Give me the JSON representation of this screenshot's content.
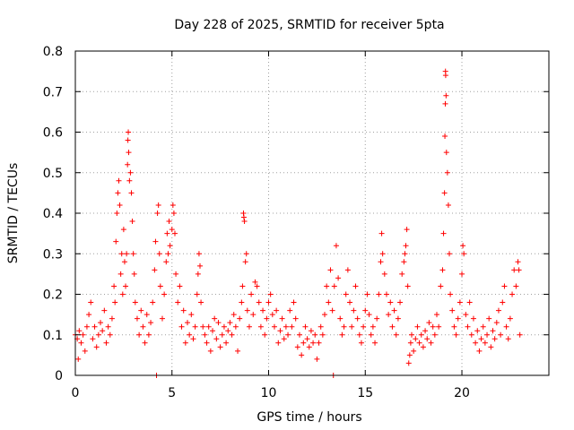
{
  "chart_data": {
    "type": "scatter",
    "title": "Day 228 of 2025, SRMTID for receiver 5pta",
    "xlabel": "GPS time / hours",
    "ylabel": "SRMTID / TECUs",
    "xlim": [
      0,
      24.5
    ],
    "ylim": [
      0,
      0.8
    ],
    "xticks": [
      0,
      5,
      10,
      15,
      20
    ],
    "xtick_labels": [
      "0",
      "5",
      "10",
      "15",
      "20"
    ],
    "yticks": [
      0,
      0.1,
      0.2,
      0.3,
      0.4,
      0.5,
      0.6,
      0.7,
      0.8
    ],
    "ytick_labels": [
      "0",
      "0.1",
      "0.2",
      "0.3",
      "0.4",
      "0.5",
      "0.6",
      "0.7",
      "0.8"
    ],
    "grid": true,
    "marker": "+",
    "color": "#ff0000",
    "series": [
      {
        "name": "SRMTID",
        "points": [
          [
            0.0,
            0.1
          ],
          [
            0.1,
            0.09
          ],
          [
            0.15,
            0.04
          ],
          [
            0.2,
            0.11
          ],
          [
            0.3,
            0.08
          ],
          [
            0.4,
            0.1
          ],
          [
            0.5,
            0.06
          ],
          [
            0.6,
            0.12
          ],
          [
            0.7,
            0.15
          ],
          [
            0.8,
            0.18
          ],
          [
            0.9,
            0.09
          ],
          [
            1.0,
            0.12
          ],
          [
            1.1,
            0.07
          ],
          [
            1.2,
            0.1
          ],
          [
            1.3,
            0.13
          ],
          [
            1.4,
            0.11
          ],
          [
            1.5,
            0.16
          ],
          [
            1.6,
            0.08
          ],
          [
            1.7,
            0.12
          ],
          [
            1.8,
            0.1
          ],
          [
            1.9,
            0.14
          ],
          [
            2.0,
            0.22
          ],
          [
            2.05,
            0.18
          ],
          [
            2.1,
            0.33
          ],
          [
            2.15,
            0.4
          ],
          [
            2.2,
            0.45
          ],
          [
            2.25,
            0.48
          ],
          [
            2.3,
            0.42
          ],
          [
            2.35,
            0.25
          ],
          [
            2.4,
            0.3
          ],
          [
            2.45,
            0.2
          ],
          [
            2.5,
            0.36
          ],
          [
            2.55,
            0.28
          ],
          [
            2.6,
            0.22
          ],
          [
            2.65,
            0.3
          ],
          [
            2.7,
            0.52
          ],
          [
            2.72,
            0.58
          ],
          [
            2.74,
            0.6
          ],
          [
            2.76,
            0.55
          ],
          [
            2.8,
            0.48
          ],
          [
            2.85,
            0.5
          ],
          [
            2.9,
            0.45
          ],
          [
            2.95,
            0.38
          ],
          [
            3.0,
            0.3
          ],
          [
            3.05,
            0.25
          ],
          [
            3.1,
            0.18
          ],
          [
            3.2,
            0.14
          ],
          [
            3.3,
            0.1
          ],
          [
            3.4,
            0.16
          ],
          [
            3.5,
            0.12
          ],
          [
            3.6,
            0.08
          ],
          [
            3.7,
            0.15
          ],
          [
            3.8,
            0.1
          ],
          [
            3.9,
            0.13
          ],
          [
            4.0,
            0.18
          ],
          [
            4.1,
            0.26
          ],
          [
            4.15,
            0.33
          ],
          [
            4.2,
            0.0
          ],
          [
            4.25,
            0.4
          ],
          [
            4.3,
            0.42
          ],
          [
            4.35,
            0.3
          ],
          [
            4.4,
            0.22
          ],
          [
            4.5,
            0.14
          ],
          [
            4.6,
            0.2
          ],
          [
            4.7,
            0.28
          ],
          [
            4.75,
            0.35
          ],
          [
            4.8,
            0.3
          ],
          [
            4.85,
            0.38
          ],
          [
            4.9,
            0.32
          ],
          [
            5.0,
            0.36
          ],
          [
            5.05,
            0.42
          ],
          [
            5.1,
            0.4
          ],
          [
            5.15,
            0.35
          ],
          [
            5.2,
            0.25
          ],
          [
            5.3,
            0.18
          ],
          [
            5.4,
            0.22
          ],
          [
            5.5,
            0.12
          ],
          [
            5.6,
            0.16
          ],
          [
            5.7,
            0.08
          ],
          [
            5.8,
            0.13
          ],
          [
            5.9,
            0.1
          ],
          [
            6.0,
            0.15
          ],
          [
            6.1,
            0.09
          ],
          [
            6.2,
            0.12
          ],
          [
            6.3,
            0.2
          ],
          [
            6.35,
            0.25
          ],
          [
            6.4,
            0.3
          ],
          [
            6.45,
            0.27
          ],
          [
            6.5,
            0.18
          ],
          [
            6.6,
            0.12
          ],
          [
            6.7,
            0.1
          ],
          [
            6.8,
            0.08
          ],
          [
            6.9,
            0.12
          ],
          [
            7.0,
            0.06
          ],
          [
            7.1,
            0.11
          ],
          [
            7.2,
            0.14
          ],
          [
            7.3,
            0.09
          ],
          [
            7.4,
            0.13
          ],
          [
            7.5,
            0.07
          ],
          [
            7.6,
            0.1
          ],
          [
            7.7,
            0.12
          ],
          [
            7.8,
            0.08
          ],
          [
            7.9,
            0.11
          ],
          [
            8.0,
            0.13
          ],
          [
            8.1,
            0.1
          ],
          [
            8.2,
            0.15
          ],
          [
            8.3,
            0.12
          ],
          [
            8.4,
            0.06
          ],
          [
            8.5,
            0.14
          ],
          [
            8.6,
            0.18
          ],
          [
            8.65,
            0.22
          ],
          [
            8.7,
            0.4
          ],
          [
            8.72,
            0.39
          ],
          [
            8.75,
            0.38
          ],
          [
            8.8,
            0.28
          ],
          [
            8.85,
            0.3
          ],
          [
            8.9,
            0.16
          ],
          [
            9.0,
            0.12
          ],
          [
            9.1,
            0.2
          ],
          [
            9.2,
            0.15
          ],
          [
            9.3,
            0.23
          ],
          [
            9.4,
            0.22
          ],
          [
            9.5,
            0.18
          ],
          [
            9.6,
            0.12
          ],
          [
            9.7,
            0.16
          ],
          [
            9.8,
            0.1
          ],
          [
            9.9,
            0.14
          ],
          [
            10.0,
            0.18
          ],
          [
            10.1,
            0.2
          ],
          [
            10.2,
            0.15
          ],
          [
            10.3,
            0.12
          ],
          [
            10.4,
            0.16
          ],
          [
            10.5,
            0.08
          ],
          [
            10.6,
            0.11
          ],
          [
            10.7,
            0.14
          ],
          [
            10.8,
            0.09
          ],
          [
            10.9,
            0.12
          ],
          [
            11.0,
            0.1
          ],
          [
            11.1,
            0.16
          ],
          [
            11.2,
            0.12
          ],
          [
            11.3,
            0.18
          ],
          [
            11.4,
            0.14
          ],
          [
            11.5,
            0.07
          ],
          [
            11.6,
            0.1
          ],
          [
            11.7,
            0.05
          ],
          [
            11.8,
            0.08
          ],
          [
            11.9,
            0.12
          ],
          [
            12.0,
            0.09
          ],
          [
            12.1,
            0.07
          ],
          [
            12.2,
            0.11
          ],
          [
            12.3,
            0.08
          ],
          [
            12.4,
            0.1
          ],
          [
            12.5,
            0.04
          ],
          [
            12.6,
            0.08
          ],
          [
            12.7,
            0.12
          ],
          [
            12.8,
            0.1
          ],
          [
            12.9,
            0.15
          ],
          [
            13.0,
            0.22
          ],
          [
            13.1,
            0.18
          ],
          [
            13.2,
            0.26
          ],
          [
            13.3,
            0.16
          ],
          [
            13.35,
            0.0
          ],
          [
            13.4,
            0.22
          ],
          [
            13.5,
            0.32
          ],
          [
            13.6,
            0.24
          ],
          [
            13.7,
            0.14
          ],
          [
            13.8,
            0.1
          ],
          [
            13.9,
            0.12
          ],
          [
            14.0,
            0.2
          ],
          [
            14.1,
            0.26
          ],
          [
            14.2,
            0.18
          ],
          [
            14.3,
            0.12
          ],
          [
            14.4,
            0.16
          ],
          [
            14.5,
            0.22
          ],
          [
            14.6,
            0.14
          ],
          [
            14.7,
            0.1
          ],
          [
            14.8,
            0.08
          ],
          [
            14.9,
            0.12
          ],
          [
            15.0,
            0.16
          ],
          [
            15.1,
            0.2
          ],
          [
            15.2,
            0.15
          ],
          [
            15.3,
            0.1
          ],
          [
            15.4,
            0.12
          ],
          [
            15.5,
            0.08
          ],
          [
            15.6,
            0.14
          ],
          [
            15.7,
            0.2
          ],
          [
            15.8,
            0.28
          ],
          [
            15.85,
            0.35
          ],
          [
            15.9,
            0.3
          ],
          [
            16.0,
            0.25
          ],
          [
            16.1,
            0.2
          ],
          [
            16.2,
            0.15
          ],
          [
            16.3,
            0.18
          ],
          [
            16.4,
            0.12
          ],
          [
            16.5,
            0.16
          ],
          [
            16.6,
            0.1
          ],
          [
            16.7,
            0.14
          ],
          [
            16.8,
            0.18
          ],
          [
            16.9,
            0.25
          ],
          [
            17.0,
            0.28
          ],
          [
            17.05,
            0.3
          ],
          [
            17.1,
            0.32
          ],
          [
            17.15,
            0.36
          ],
          [
            17.2,
            0.22
          ],
          [
            17.25,
            0.03
          ],
          [
            17.3,
            0.05
          ],
          [
            17.35,
            0.08
          ],
          [
            17.4,
            0.1
          ],
          [
            17.5,
            0.06
          ],
          [
            17.6,
            0.09
          ],
          [
            17.7,
            0.12
          ],
          [
            17.8,
            0.08
          ],
          [
            17.9,
            0.1
          ],
          [
            18.0,
            0.07
          ],
          [
            18.1,
            0.11
          ],
          [
            18.2,
            0.09
          ],
          [
            18.3,
            0.13
          ],
          [
            18.4,
            0.08
          ],
          [
            18.5,
            0.12
          ],
          [
            18.6,
            0.1
          ],
          [
            18.7,
            0.15
          ],
          [
            18.8,
            0.12
          ],
          [
            18.9,
            0.22
          ],
          [
            19.0,
            0.26
          ],
          [
            19.05,
            0.35
          ],
          [
            19.1,
            0.45
          ],
          [
            19.12,
            0.59
          ],
          [
            19.14,
            0.67
          ],
          [
            19.15,
            0.75
          ],
          [
            19.16,
            0.74
          ],
          [
            19.18,
            0.69
          ],
          [
            19.2,
            0.55
          ],
          [
            19.25,
            0.5
          ],
          [
            19.3,
            0.42
          ],
          [
            19.35,
            0.3
          ],
          [
            19.4,
            0.2
          ],
          [
            19.5,
            0.16
          ],
          [
            19.6,
            0.12
          ],
          [
            19.7,
            0.1
          ],
          [
            19.8,
            0.14
          ],
          [
            19.9,
            0.18
          ],
          [
            20.0,
            0.25
          ],
          [
            20.05,
            0.32
          ],
          [
            20.1,
            0.3
          ],
          [
            20.2,
            0.15
          ],
          [
            20.3,
            0.12
          ],
          [
            20.4,
            0.18
          ],
          [
            20.5,
            0.1
          ],
          [
            20.6,
            0.14
          ],
          [
            20.7,
            0.08
          ],
          [
            20.8,
            0.11
          ],
          [
            20.9,
            0.06
          ],
          [
            21.0,
            0.09
          ],
          [
            21.1,
            0.12
          ],
          [
            21.2,
            0.08
          ],
          [
            21.3,
            0.1
          ],
          [
            21.4,
            0.14
          ],
          [
            21.5,
            0.07
          ],
          [
            21.6,
            0.11
          ],
          [
            21.7,
            0.09
          ],
          [
            21.8,
            0.13
          ],
          [
            21.9,
            0.16
          ],
          [
            22.0,
            0.1
          ],
          [
            22.1,
            0.18
          ],
          [
            22.2,
            0.22
          ],
          [
            22.3,
            0.12
          ],
          [
            22.4,
            0.09
          ],
          [
            22.5,
            0.14
          ],
          [
            22.6,
            0.2
          ],
          [
            22.7,
            0.26
          ],
          [
            22.8,
            0.22
          ],
          [
            22.9,
            0.28
          ],
          [
            22.95,
            0.26
          ],
          [
            23.0,
            0.1
          ]
        ]
      }
    ]
  }
}
